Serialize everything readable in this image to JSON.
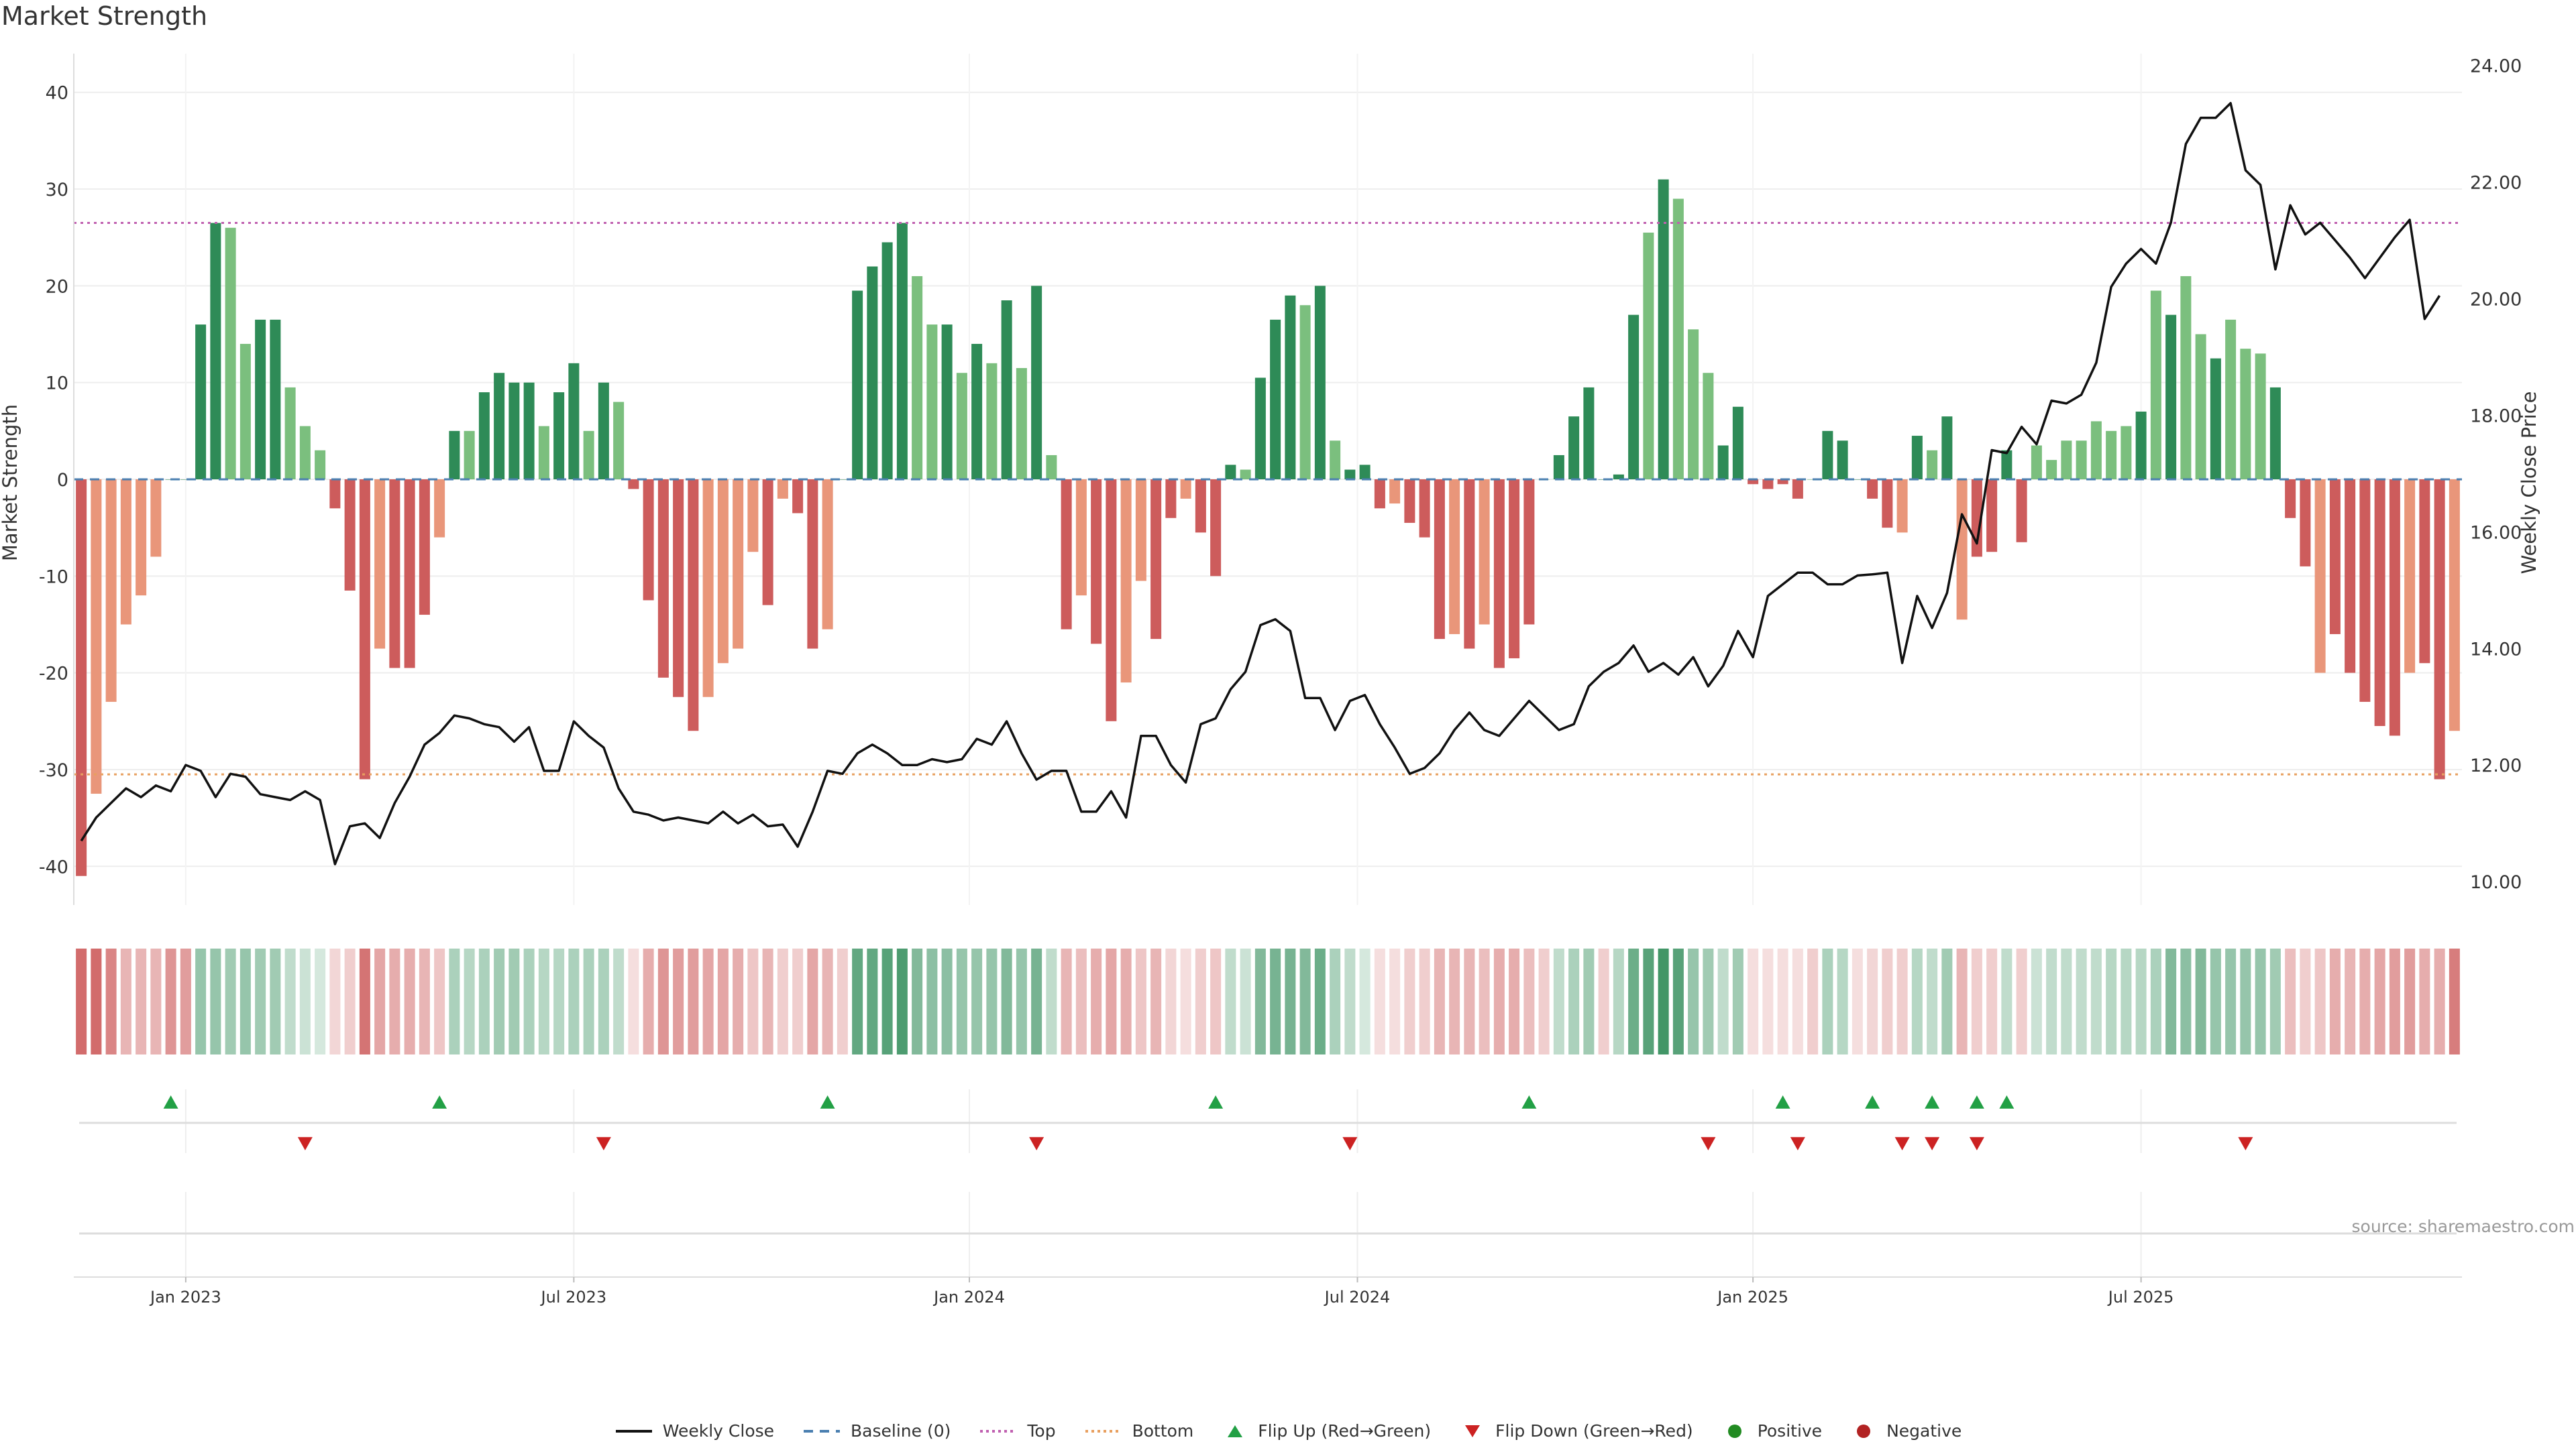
{
  "title": "Market Strength",
  "source": "source: sharemaestro.com",
  "colors": {
    "strong_green": "#2e8b57",
    "light_green": "#7bbf7e",
    "strong_red": "#cd5c5c",
    "light_red": "#e9967a",
    "flip_up": "#22a045",
    "flip_down": "#cc2222",
    "top_line": "#c060b0",
    "bottom_line": "#e8a060",
    "baseline": "#4a7fb0"
  },
  "legend": [
    {
      "label": "Weekly Close",
      "icon": "solid-line-icon"
    },
    {
      "label": "Baseline (0)",
      "icon": "dashed-line-icon"
    },
    {
      "label": "Top",
      "icon": "dotted-line-icon"
    },
    {
      "label": "Bottom",
      "icon": "dotted-line-icon"
    },
    {
      "label": "Flip Up (Red→Green)",
      "icon": "triangle-up-icon"
    },
    {
      "label": "Flip Down (Green→Red)",
      "icon": "triangle-down-icon"
    },
    {
      "label": "Positive",
      "icon": "circle-icon"
    },
    {
      "label": "Negative",
      "icon": "circle-icon"
    }
  ],
  "chart_data": {
    "type": "bar",
    "title": "Market Strength",
    "ylabel": "Market Strength",
    "y2label": "Weekly Close Price",
    "ylim": [
      -44,
      44
    ],
    "y2lim": [
      9.6,
      24.2
    ],
    "yticks": [
      40,
      30,
      20,
      10,
      0,
      -10,
      -20,
      -30,
      -40
    ],
    "y2ticks": [
      "24.00",
      "22.00",
      "20.00",
      "18.00",
      "16.00",
      "14.00",
      "12.00",
      "10.00"
    ],
    "xtick_labels": [
      "Jan 2023",
      "Jul 2023",
      "Jan 2024",
      "Jul 2024",
      "Jan 2025",
      "Jul 2025"
    ],
    "xtick_index": [
      7,
      33,
      59.5,
      85.5,
      112,
      138
    ],
    "top_level": 26.5,
    "bottom_level": -30.5,
    "baseline": 0,
    "strength": [
      -41,
      -32.5,
      -23,
      -15,
      -12,
      -8,
      0,
      0,
      16,
      26.5,
      26,
      14,
      16.5,
      16.5,
      9.5,
      5.5,
      3,
      -3,
      -11.5,
      -31,
      -17.5,
      -19.5,
      -19.5,
      -14,
      -6,
      5,
      5,
      9,
      11,
      10,
      10,
      5.5,
      9,
      12,
      5,
      10,
      8,
      -1,
      -12.5,
      -20.5,
      -22.5,
      -26,
      -22.5,
      -19,
      -17.5,
      -7.5,
      -13,
      -2,
      -3.5,
      -17.5,
      -15.5,
      0,
      19.5,
      22,
      24.5,
      26.5,
      21,
      16,
      16,
      11,
      14,
      12,
      18.5,
      11.5,
      20,
      2.5,
      -15.5,
      -12,
      -17,
      -25,
      -21,
      -10.5,
      -16.5,
      -4,
      -2,
      -5.5,
      -10,
      1.5,
      1,
      10.5,
      16.5,
      19,
      18,
      20,
      4,
      1,
      1.5,
      -3,
      -2.5,
      -4.5,
      -6,
      -16.5,
      -16,
      -17.5,
      -15,
      -19.5,
      -18.5,
      -15,
      0,
      2.5,
      6.5,
      9.5,
      0,
      0.5,
      17,
      25.5,
      31,
      29,
      15.5,
      11,
      3.5,
      7.5,
      -0.5,
      -1,
      -0.5,
      -2,
      0,
      5,
      4,
      0,
      -2,
      -5,
      -5.5,
      4.5,
      3,
      6.5,
      -14.5,
      -8,
      -7.5,
      3,
      -6.5,
      3.5,
      2,
      4,
      4,
      6,
      5,
      5.5,
      7,
      19.5,
      17,
      21,
      15,
      12.5,
      16.5,
      13.5,
      13,
      9.5,
      -4,
      -9,
      -20,
      -16,
      -20,
      -23,
      -25.5,
      -26.5,
      -20,
      -19,
      -31,
      -26
    ],
    "bar_shade": [
      "s",
      "l",
      "l",
      "l",
      "l",
      "l",
      "s",
      "s",
      "s",
      "s",
      "l",
      "l",
      "s",
      "s",
      "l",
      "l",
      "l",
      "s",
      "s",
      "s",
      "l",
      "s",
      "s",
      "s",
      "l",
      "s",
      "l",
      "s",
      "s",
      "s",
      "s",
      "l",
      "s",
      "s",
      "l",
      "s",
      "l",
      "s",
      "s",
      "s",
      "s",
      "s",
      "l",
      "l",
      "l",
      "l",
      "s",
      "l",
      "s",
      "s",
      "l",
      "s",
      "s",
      "s",
      "s",
      "s",
      "l",
      "l",
      "s",
      "l",
      "s",
      "l",
      "s",
      "l",
      "s",
      "l",
      "s",
      "l",
      "s",
      "s",
      "l",
      "l",
      "s",
      "s",
      "l",
      "s",
      "s",
      "s",
      "l",
      "s",
      "s",
      "s",
      "l",
      "s",
      "l",
      "s",
      "s",
      "s",
      "l",
      "s",
      "s",
      "s",
      "l",
      "s",
      "l",
      "s",
      "s",
      "s",
      "l",
      "s",
      "s",
      "s",
      "s",
      "s",
      "s",
      "l",
      "s",
      "l",
      "l",
      "l",
      "s",
      "s",
      "s",
      "s",
      "s",
      "s",
      "l",
      "s",
      "s",
      "s",
      "s",
      "s",
      "l",
      "s",
      "l",
      "s",
      "l",
      "s",
      "s",
      "s",
      "s",
      "l",
      "l",
      "l",
      "l",
      "l",
      "l",
      "l",
      "s",
      "l",
      "s",
      "l",
      "l",
      "s",
      "l",
      "l",
      "l",
      "s",
      "s",
      "s",
      "l",
      "s",
      "s",
      "s",
      "s",
      "s",
      "l",
      "s",
      "s",
      "l"
    ],
    "weekly_close": [
      10.7,
      11.1,
      11.35,
      11.6,
      11.45,
      11.65,
      11.55,
      12,
      11.9,
      11.45,
      11.85,
      11.8,
      11.5,
      11.45,
      11.4,
      11.55,
      11.4,
      10.3,
      10.95,
      11,
      10.75,
      11.35,
      11.8,
      12.35,
      12.55,
      12.85,
      12.8,
      12.7,
      12.65,
      12.4,
      12.65,
      11.9,
      11.9,
      12.75,
      12.5,
      12.3,
      11.6,
      11.2,
      11.15,
      11.05,
      11.1,
      11.05,
      11.0,
      11.2,
      11.0,
      11.15,
      10.95,
      10.98,
      10.6,
      11.2,
      11.9,
      11.85,
      12.2,
      12.35,
      12.2,
      12,
      12,
      12.1,
      12.05,
      12.1,
      12.45,
      12.35,
      12.75,
      12.2,
      11.75,
      11.9,
      11.9,
      11.2,
      11.2,
      11.55,
      11.1,
      12.5,
      12.5,
      12.0,
      11.7,
      12.7,
      12.8,
      13.3,
      13.6,
      14.4,
      14.5,
      14.3,
      13.15,
      13.15,
      12.6,
      13.1,
      13.2,
      12.7,
      12.3,
      11.85,
      11.95,
      12.2,
      12.6,
      12.9,
      12.6,
      12.5,
      12.8,
      13.1,
      12.85,
      12.6,
      12.7,
      13.35,
      13.6,
      13.75,
      14.05,
      13.6,
      13.75,
      13.55,
      13.85,
      13.35,
      13.7,
      14.3,
      13.85,
      14.9,
      15.1,
      15.3,
      15.3,
      15.1,
      15.1,
      15.25,
      15.27,
      15.3,
      13.75,
      14.9,
      14.35,
      14.95,
      16.3,
      15.8,
      17.4,
      17.35,
      17.8,
      17.5,
      18.25,
      18.2,
      18.35,
      18.9,
      20.2,
      20.6,
      20.85,
      20.6,
      21.3,
      22.65,
      23.1,
      23.1,
      23.35,
      22.2,
      21.95,
      20.5,
      21.6,
      21.1,
      21.3,
      21.0,
      20.7,
      20.35,
      20.7,
      21.05,
      21.35,
      19.65,
      20.05
    ],
    "flips_up": [
      6,
      24,
      50,
      76,
      97,
      114,
      120,
      124,
      127,
      129
    ],
    "flips_down": [
      15,
      35,
      64,
      85,
      109,
      115,
      122,
      124,
      127,
      145
    ],
    "heat_alpha": [
      0.9,
      0.9,
      0.75,
      0.45,
      0.45,
      0.45,
      0.65,
      0.6,
      0.5,
      0.5,
      0.45,
      0.5,
      0.45,
      0.45,
      0.3,
      0.25,
      0.2,
      0.25,
      0.3,
      0.85,
      0.55,
      0.5,
      0.5,
      0.45,
      0.35,
      0.4,
      0.35,
      0.4,
      0.45,
      0.45,
      0.4,
      0.35,
      0.35,
      0.4,
      0.4,
      0.4,
      0.3,
      0.2,
      0.5,
      0.65,
      0.6,
      0.6,
      0.55,
      0.55,
      0.5,
      0.35,
      0.45,
      0.3,
      0.3,
      0.55,
      0.45,
      0.3,
      0.75,
      0.75,
      0.8,
      0.85,
      0.6,
      0.55,
      0.55,
      0.5,
      0.5,
      0.5,
      0.6,
      0.5,
      0.65,
      0.3,
      0.45,
      0.4,
      0.5,
      0.55,
      0.5,
      0.35,
      0.45,
      0.25,
      0.2,
      0.3,
      0.35,
      0.3,
      0.25,
      0.6,
      0.65,
      0.65,
      0.6,
      0.7,
      0.4,
      0.3,
      0.2,
      0.2,
      0.2,
      0.3,
      0.3,
      0.45,
      0.45,
      0.45,
      0.4,
      0.5,
      0.5,
      0.4,
      0.3,
      0.3,
      0.4,
      0.45,
      0.3,
      0.35,
      0.7,
      0.8,
      0.9,
      0.8,
      0.5,
      0.45,
      0.3,
      0.45,
      0.2,
      0.2,
      0.2,
      0.2,
      0.3,
      0.4,
      0.35,
      0.2,
      0.25,
      0.3,
      0.3,
      0.35,
      0.3,
      0.45,
      0.45,
      0.3,
      0.3,
      0.3,
      0.3,
      0.25,
      0.3,
      0.3,
      0.3,
      0.3,
      0.35,
      0.35,
      0.35,
      0.4,
      0.6,
      0.55,
      0.6,
      0.5,
      0.5,
      0.5,
      0.5,
      0.45,
      0.4,
      0.3,
      0.35,
      0.5,
      0.45,
      0.5,
      0.55,
      0.6,
      0.6,
      0.5,
      0.5,
      0.8,
      0.65
    ]
  }
}
